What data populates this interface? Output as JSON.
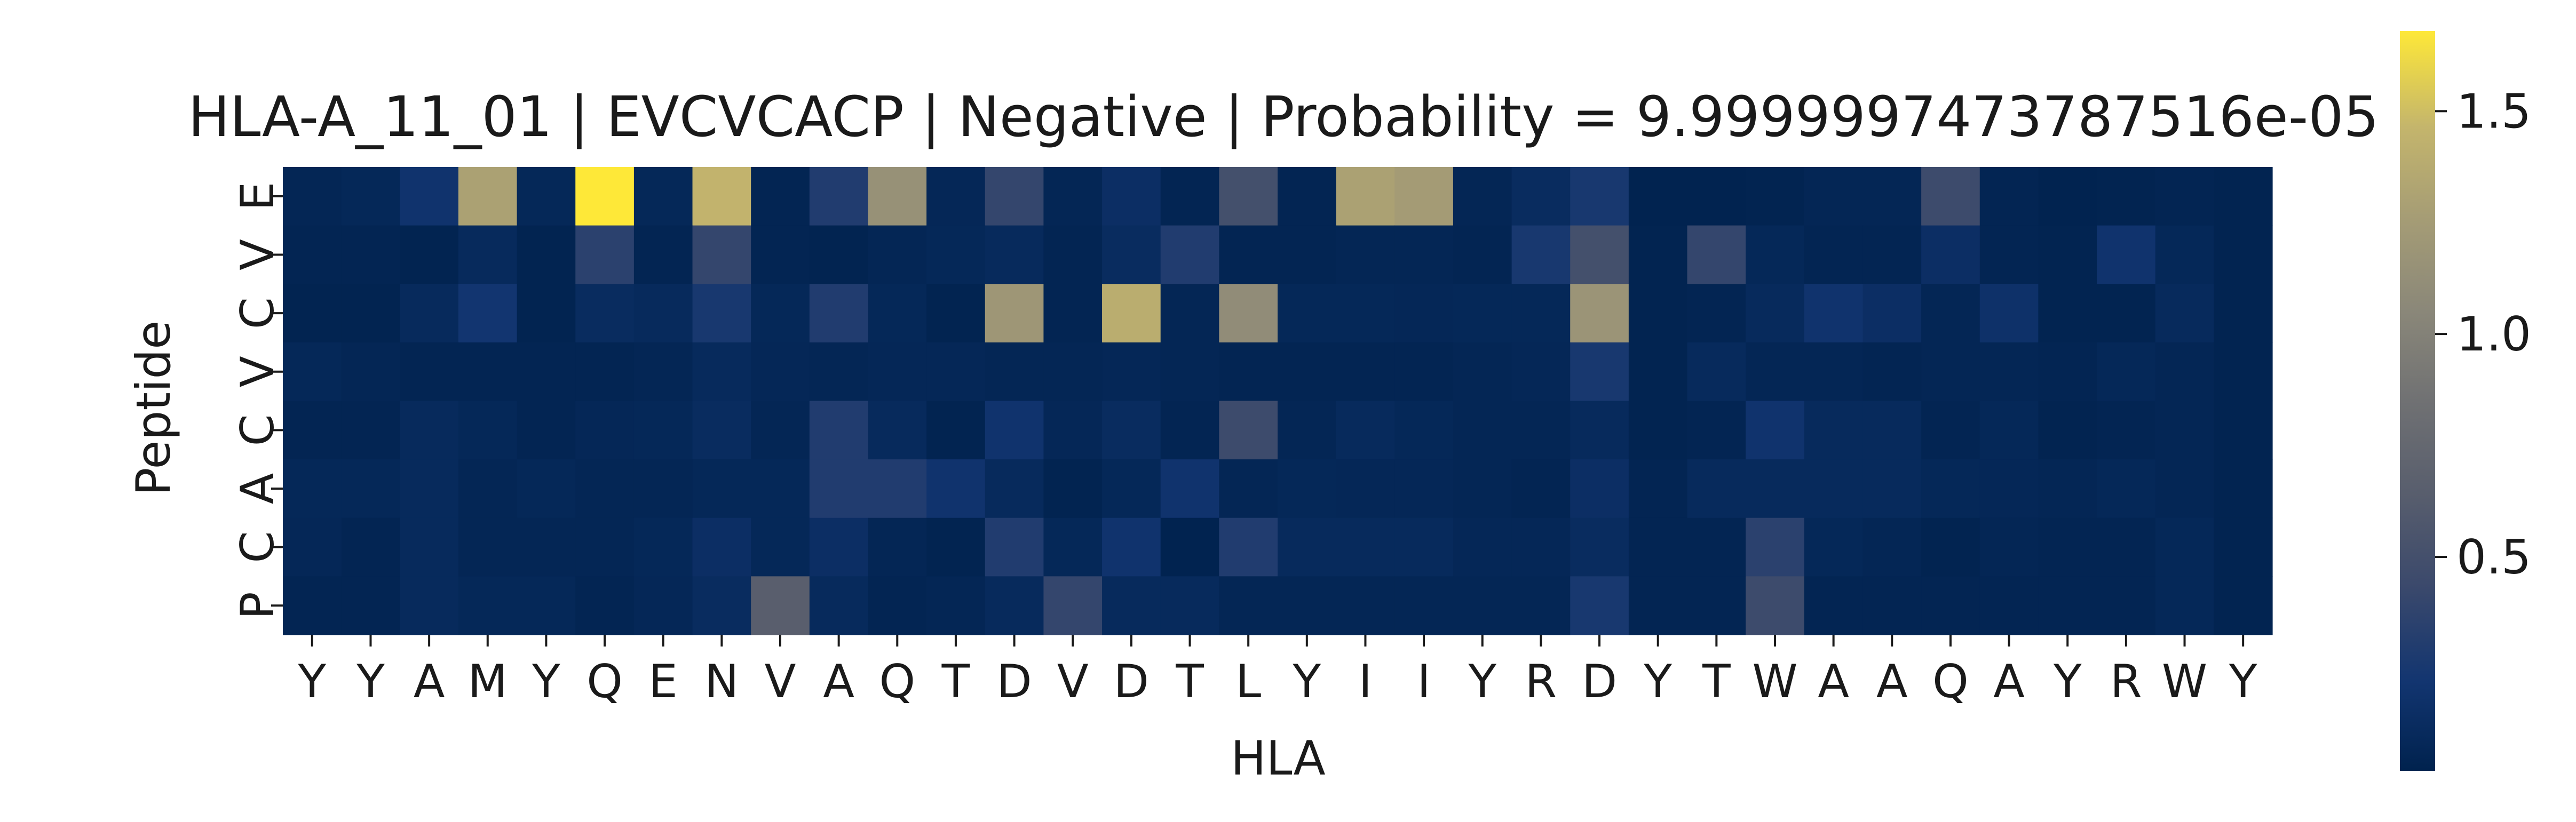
{
  "chart_data": {
    "type": "heatmap",
    "title": "HLA-A_11_01 | EVCVCACP | Negative | Probability = 9.9999997473787516e-05",
    "xlabel": "HLA",
    "ylabel": "Peptide",
    "x_categories": [
      "Y",
      "Y",
      "A",
      "M",
      "Y",
      "Q",
      "E",
      "N",
      "V",
      "A",
      "Q",
      "T",
      "D",
      "V",
      "D",
      "T",
      "L",
      "Y",
      "I",
      "I",
      "Y",
      "R",
      "D",
      "Y",
      "T",
      "W",
      "A",
      "A",
      "Q",
      "A",
      "Y",
      "R",
      "W",
      "Y"
    ],
    "y_categories": [
      "E",
      "V",
      "C",
      "V",
      "C",
      "A",
      "C",
      "P"
    ],
    "colormap": "cividis",
    "colorbar": {
      "range": [
        0.02,
        1.68
      ],
      "ticks": [
        0.5,
        1.0,
        1.5
      ],
      "tick_labels": [
        "0.5",
        "1.0",
        "1.5"
      ]
    },
    "values": [
      [
        0.06,
        0.08,
        0.2,
        1.3,
        0.08,
        1.68,
        0.08,
        1.45,
        0.05,
        0.3,
        1.15,
        0.07,
        0.4,
        0.06,
        0.15,
        0.05,
        0.5,
        0.05,
        1.3,
        1.25,
        0.06,
        0.12,
        0.25,
        0.03,
        0.03,
        0.04,
        0.06,
        0.06,
        0.45,
        0.05,
        0.03,
        0.04,
        0.05,
        0.04
      ],
      [
        0.05,
        0.05,
        0.04,
        0.1,
        0.04,
        0.35,
        0.05,
        0.4,
        0.05,
        0.04,
        0.06,
        0.08,
        0.1,
        0.05,
        0.12,
        0.3,
        0.05,
        0.05,
        0.06,
        0.06,
        0.05,
        0.25,
        0.5,
        0.04,
        0.4,
        0.08,
        0.05,
        0.05,
        0.15,
        0.05,
        0.04,
        0.2,
        0.08,
        0.04
      ],
      [
        0.04,
        0.04,
        0.1,
        0.22,
        0.04,
        0.12,
        0.1,
        0.25,
        0.08,
        0.3,
        0.08,
        0.04,
        1.2,
        0.05,
        1.4,
        0.06,
        1.1,
        0.08,
        0.08,
        0.07,
        0.08,
        0.08,
        1.18,
        0.04,
        0.05,
        0.1,
        0.2,
        0.15,
        0.06,
        0.18,
        0.04,
        0.04,
        0.1,
        0.04
      ],
      [
        0.08,
        0.06,
        0.05,
        0.05,
        0.05,
        0.05,
        0.06,
        0.1,
        0.07,
        0.06,
        0.07,
        0.07,
        0.06,
        0.06,
        0.07,
        0.06,
        0.05,
        0.05,
        0.05,
        0.05,
        0.06,
        0.07,
        0.25,
        0.04,
        0.1,
        0.06,
        0.06,
        0.05,
        0.06,
        0.06,
        0.05,
        0.08,
        0.06,
        0.04
      ],
      [
        0.05,
        0.05,
        0.1,
        0.08,
        0.05,
        0.07,
        0.08,
        0.12,
        0.06,
        0.3,
        0.1,
        0.04,
        0.2,
        0.07,
        0.12,
        0.05,
        0.45,
        0.06,
        0.1,
        0.08,
        0.06,
        0.06,
        0.1,
        0.04,
        0.05,
        0.2,
        0.1,
        0.1,
        0.05,
        0.08,
        0.04,
        0.05,
        0.06,
        0.04
      ],
      [
        0.08,
        0.08,
        0.1,
        0.06,
        0.08,
        0.06,
        0.06,
        0.08,
        0.08,
        0.3,
        0.3,
        0.2,
        0.1,
        0.04,
        0.08,
        0.2,
        0.06,
        0.08,
        0.07,
        0.07,
        0.06,
        0.05,
        0.15,
        0.05,
        0.1,
        0.1,
        0.1,
        0.1,
        0.08,
        0.07,
        0.06,
        0.08,
        0.06,
        0.04
      ],
      [
        0.07,
        0.05,
        0.1,
        0.06,
        0.06,
        0.06,
        0.08,
        0.15,
        0.08,
        0.15,
        0.06,
        0.04,
        0.3,
        0.08,
        0.2,
        0.03,
        0.3,
        0.1,
        0.1,
        0.1,
        0.07,
        0.07,
        0.12,
        0.05,
        0.05,
        0.35,
        0.08,
        0.06,
        0.04,
        0.06,
        0.05,
        0.05,
        0.08,
        0.04
      ],
      [
        0.05,
        0.05,
        0.1,
        0.08,
        0.08,
        0.05,
        0.07,
        0.12,
        0.65,
        0.1,
        0.05,
        0.06,
        0.1,
        0.4,
        0.1,
        0.1,
        0.06,
        0.06,
        0.06,
        0.06,
        0.06,
        0.06,
        0.25,
        0.05,
        0.05,
        0.45,
        0.05,
        0.05,
        0.05,
        0.05,
        0.05,
        0.05,
        0.08,
        0.04
      ]
    ]
  }
}
